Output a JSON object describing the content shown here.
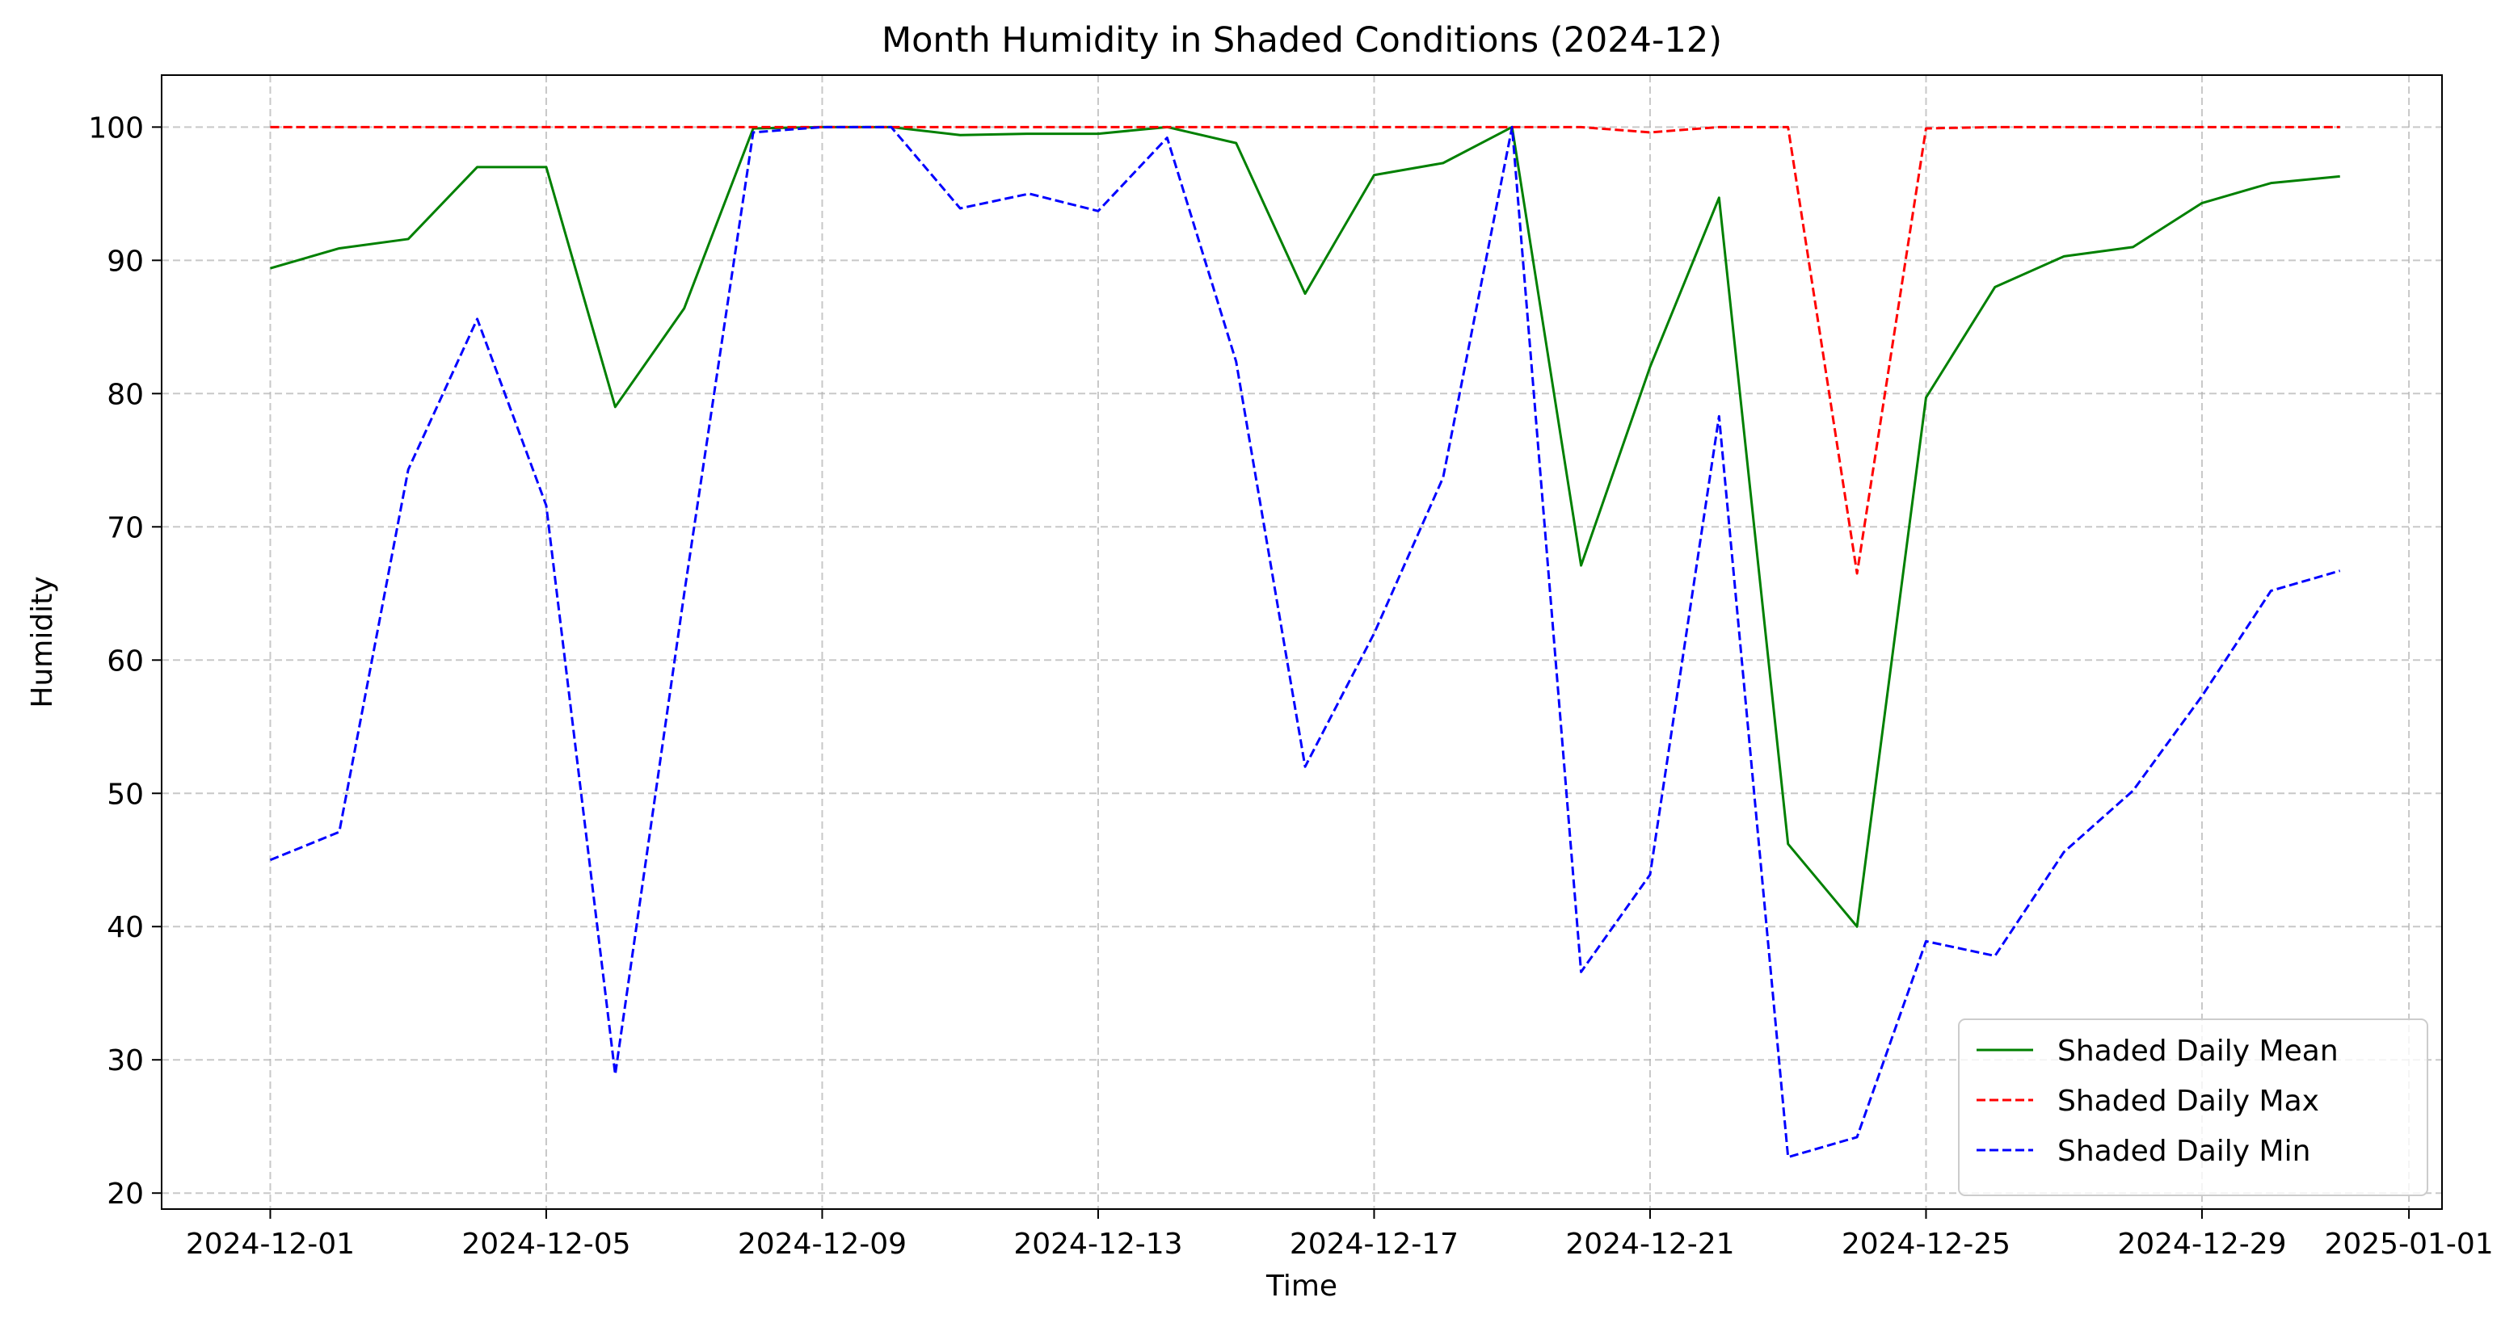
{
  "chart_data": {
    "type": "line",
    "title": "Month Humidity in Shaded Conditions (2024-12)",
    "xlabel": "Time",
    "ylabel": "Humidity",
    "x": [
      "2024-12-01",
      "2024-12-02",
      "2024-12-03",
      "2024-12-04",
      "2024-12-05",
      "2024-12-06",
      "2024-12-07",
      "2024-12-08",
      "2024-12-09",
      "2024-12-10",
      "2024-12-11",
      "2024-12-12",
      "2024-12-13",
      "2024-12-14",
      "2024-12-15",
      "2024-12-16",
      "2024-12-17",
      "2024-12-18",
      "2024-12-19",
      "2024-12-20",
      "2024-12-21",
      "2024-12-22",
      "2024-12-23",
      "2024-12-24",
      "2024-12-25",
      "2024-12-26",
      "2024-12-27",
      "2024-12-28",
      "2024-12-29",
      "2024-12-30",
      "2024-12-31"
    ],
    "xlim": [
      "2024-11-29T10:12",
      "2025-01-01T11:30"
    ],
    "ylim": [
      18.8,
      103.9
    ],
    "x_ticks": [
      "2024-12-01",
      "2024-12-05",
      "2024-12-09",
      "2024-12-13",
      "2024-12-17",
      "2024-12-21",
      "2024-12-25",
      "2024-12-29",
      "2025-01-01"
    ],
    "y_ticks": [
      20,
      30,
      40,
      50,
      60,
      70,
      80,
      90,
      100
    ],
    "grid": true,
    "legend_position": "lower right",
    "series": [
      {
        "name": "Shaded Daily Mean",
        "color": "#008000",
        "dash": "solid",
        "values": [
          89.4,
          90.9,
          91.6,
          97.0,
          97.0,
          79.0,
          86.4,
          99.9,
          100.0,
          100.0,
          99.4,
          99.5,
          99.5,
          100.0,
          98.8,
          87.5,
          96.4,
          97.3,
          100.0,
          67.1,
          82.0,
          94.7,
          46.2,
          40.0,
          79.7,
          88.0,
          90.3,
          91.0,
          94.3,
          95.8,
          96.3
        ]
      },
      {
        "name": "Shaded Daily Max",
        "color": "#ff0000",
        "dash": "dashed",
        "values": [
          100.0,
          100.0,
          100.0,
          100.0,
          100.0,
          100.0,
          100.0,
          100.0,
          100.0,
          100.0,
          100.0,
          100.0,
          100.0,
          100.0,
          100.0,
          100.0,
          100.0,
          100.0,
          100.0,
          100.0,
          99.6,
          100.0,
          100.0,
          66.5,
          99.9,
          100.0,
          100.0,
          100.0,
          100.0,
          100.0,
          100.0
        ]
      },
      {
        "name": "Shaded Daily Min",
        "color": "#0000ff",
        "dash": "dashed",
        "values": [
          45.0,
          47.1,
          74.3,
          85.6,
          71.6,
          28.9,
          65.0,
          99.6,
          100.0,
          100.0,
          93.9,
          95.0,
          93.7,
          99.2,
          82.4,
          52.0,
          62.0,
          73.7,
          100.0,
          36.6,
          43.9,
          78.3,
          22.7,
          24.2,
          38.9,
          37.8,
          45.6,
          50.2,
          57.3,
          65.2,
          66.7
        ]
      }
    ]
  }
}
